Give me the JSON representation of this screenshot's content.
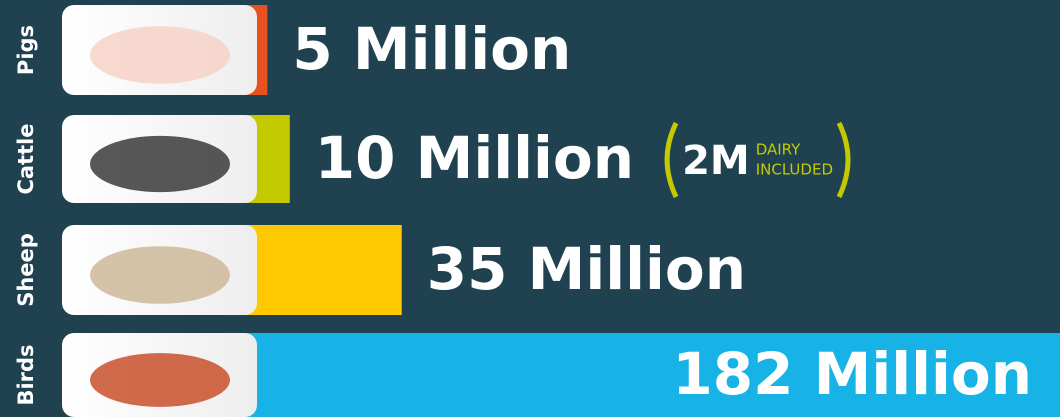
{
  "chart_data": {
    "type": "bar",
    "orientation": "horizontal",
    "categories": [
      "Pigs",
      "Cattle",
      "Sheep",
      "Birds"
    ],
    "values": [
      5,
      10,
      35,
      182
    ],
    "value_labels": [
      "5 Million",
      "10 Million",
      "35 Million",
      "182 Million"
    ],
    "colors": [
      "#e8501f",
      "#c3cb00",
      "#ffc800",
      "#17b2e6"
    ],
    "annotation": {
      "amount": "2M",
      "note_line1": "DAIRY",
      "note_line2": "INCLUDED"
    }
  }
}
